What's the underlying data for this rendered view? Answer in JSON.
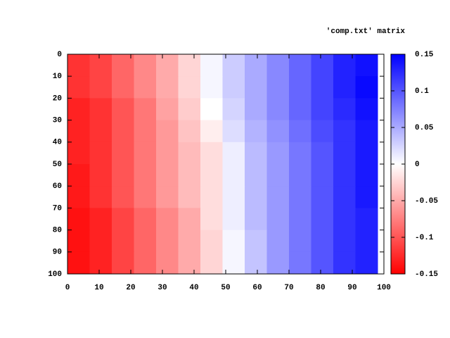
{
  "chart_data": {
    "type": "heatmap",
    "title": "'comp.txt' matrix",
    "x": [
      0,
      7,
      14,
      21,
      28,
      35,
      42,
      49,
      56,
      63,
      70,
      77,
      84,
      91
    ],
    "y": [
      0,
      10,
      20,
      30,
      40,
      50,
      60,
      70,
      80,
      90
    ],
    "z": [
      [
        -0.12,
        -0.11,
        -0.09,
        -0.07,
        -0.05,
        -0.025,
        0.005,
        0.03,
        0.05,
        0.07,
        0.09,
        0.11,
        0.13,
        0.14
      ],
      [
        -0.12,
        -0.11,
        -0.09,
        -0.07,
        -0.05,
        -0.025,
        0.005,
        0.03,
        0.05,
        0.07,
        0.09,
        0.11,
        0.13,
        0.145
      ],
      [
        -0.13,
        -0.12,
        -0.1,
        -0.08,
        -0.055,
        -0.03,
        0.0,
        0.025,
        0.05,
        0.07,
        0.09,
        0.11,
        0.125,
        0.14
      ],
      [
        -0.13,
        -0.12,
        -0.1,
        -0.08,
        -0.06,
        -0.035,
        -0.01,
        0.02,
        0.045,
        0.065,
        0.085,
        0.105,
        0.12,
        0.135
      ],
      [
        -0.13,
        -0.12,
        -0.1,
        -0.08,
        -0.06,
        -0.04,
        -0.02,
        0.01,
        0.04,
        0.06,
        0.08,
        0.1,
        0.12,
        0.135
      ],
      [
        -0.135,
        -0.12,
        -0.1,
        -0.08,
        -0.06,
        -0.04,
        -0.02,
        0.01,
        0.04,
        0.06,
        0.08,
        0.1,
        0.12,
        0.135
      ],
      [
        -0.135,
        -0.12,
        -0.1,
        -0.08,
        -0.06,
        -0.04,
        -0.02,
        0.01,
        0.04,
        0.06,
        0.08,
        0.1,
        0.12,
        0.135
      ],
      [
        -0.14,
        -0.13,
        -0.11,
        -0.09,
        -0.07,
        -0.05,
        -0.02,
        0.01,
        0.04,
        0.06,
        0.08,
        0.1,
        0.12,
        0.13
      ],
      [
        -0.14,
        -0.13,
        -0.11,
        -0.09,
        -0.07,
        -0.05,
        -0.025,
        0.005,
        0.035,
        0.06,
        0.08,
        0.1,
        0.12,
        0.13
      ],
      [
        -0.14,
        -0.13,
        -0.11,
        -0.09,
        -0.07,
        -0.05,
        -0.025,
        0.005,
        0.035,
        0.06,
        0.08,
        0.1,
        0.12,
        0.13
      ]
    ],
    "xlim": [
      0,
      100
    ],
    "ylim": [
      100,
      0
    ],
    "xticks": [
      0,
      10,
      20,
      30,
      40,
      50,
      60,
      70,
      80,
      90,
      100
    ],
    "yticks": [
      0,
      10,
      20,
      30,
      40,
      50,
      60,
      70,
      80,
      90,
      100
    ],
    "clim": [
      -0.15,
      0.15
    ],
    "cticks": [
      -0.15,
      -0.1,
      -0.05,
      0,
      0.05,
      0.1,
      0.15
    ],
    "colormap": [
      "#ff0000",
      "#ffffff",
      "#0000ff"
    ]
  }
}
